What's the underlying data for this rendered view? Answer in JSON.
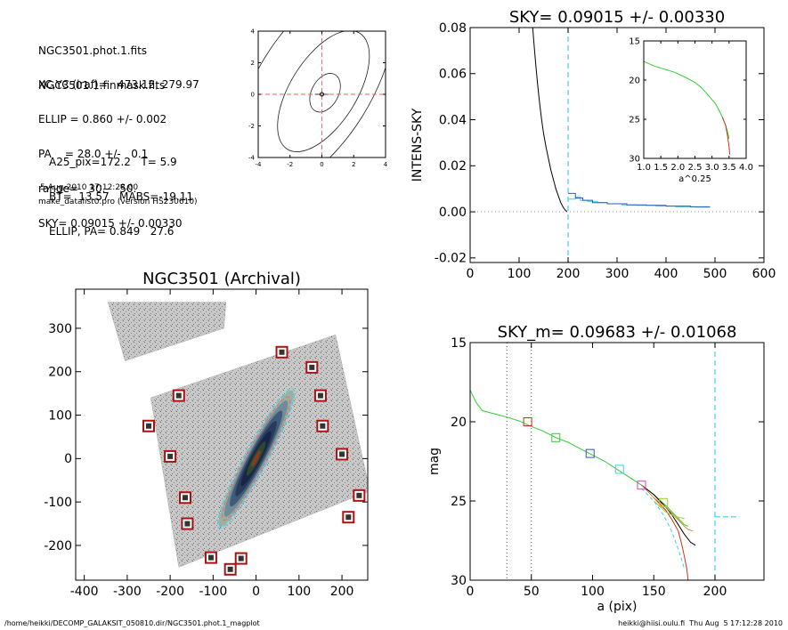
{
  "info": {
    "files": [
      "NGC3501.phot.1.fits",
      "NGC3501.1.finmask.fits"
    ],
    "params": [
      "XC,YC (iraf)=   473.12, 279.97",
      "ELLIP = 0.860 +/- 0.002",
      "PA    = 28.0 +/-   0.1",
      "range=   30.-   50.",
      "SKY= 0.09015 +/- 0.00330"
    ],
    "derived": [
      "A25_pix=172.2   T= 5.9",
      "BT=  13.57   MABS=-19.11",
      "ELLIP, PA= 0.849   27.6"
    ],
    "date": "5-Aug-2010 17:12:28.00",
    "program": "make_datalist0.pro (version HS230610)"
  },
  "footer": {
    "left": "/home/heikki/DECOMP_GALAKSIT_050810.dir/NGC3501.phot.1_magplot",
    "right": "heikki@hiisi.oulu.fi  Thu Aug  5 17:12:28 2010"
  },
  "colors": {
    "black": "#000000",
    "grid": "#999999",
    "cyan": "#44ccee",
    "navy": "#3355bb",
    "green": "#33cc33",
    "red": "#cc3311",
    "orange": "#dd8833",
    "magenta": "#cc44cc",
    "yellowgreen": "#99cc33",
    "dashred": "#ee6666",
    "boxred": "#aa1111"
  },
  "chart_data": [
    {
      "type": "line",
      "id": "contour",
      "title": "",
      "xlim": [
        -4,
        4
      ],
      "ylim": [
        -4,
        4
      ],
      "xticks": [
        -4,
        -2,
        0,
        2,
        4
      ],
      "yticks": [
        -4,
        -2,
        0,
        2,
        4
      ],
      "x_tick_labels": [
        "-4",
        "-2",
        "0",
        "2",
        "4"
      ],
      "y_tick_labels": [
        "-4",
        "-2",
        "0",
        "2",
        "4"
      ],
      "crosshair": [
        0,
        0
      ],
      "contours": [
        {
          "cx": 0.2,
          "cy": 0.1,
          "a": 1.3,
          "b": 0.85,
          "angle_deg": 62
        },
        {
          "cx": 0.1,
          "cy": 0.2,
          "a": 4.3,
          "b": 2.1,
          "angle_deg": 58
        },
        {
          "cx": -0.5,
          "cy": 0.5,
          "a": 7.5,
          "b": 3.6,
          "angle_deg": 58
        }
      ]
    },
    {
      "type": "line",
      "id": "sky",
      "title": "SKY= 0.09015 +/- 0.00330",
      "xlabel": "",
      "ylabel": "INTENS-SKY",
      "xlim": [
        0,
        600
      ],
      "ylim": [
        -0.022,
        0.08
      ],
      "xticks": [
        0,
        100,
        200,
        300,
        400,
        500,
        600
      ],
      "yticks": [
        -0.02,
        0.0,
        0.02,
        0.04,
        0.06,
        0.08
      ],
      "x_tick_labels": [
        "0",
        "100",
        "200",
        "300",
        "400",
        "500",
        "600"
      ],
      "y_tick_labels": [
        "-0.02",
        "0.00",
        "0.02",
        "0.04",
        "0.06",
        "0.08"
      ],
      "zero_line": 0,
      "vline": 200,
      "series": [
        {
          "color": "black",
          "x": [
            127,
            130,
            134,
            138,
            142,
            146,
            150,
            155,
            160,
            165,
            170,
            175,
            180,
            185,
            190,
            195,
            198
          ],
          "y": [
            0.082,
            0.074,
            0.064,
            0.055,
            0.047,
            0.04,
            0.034,
            0.028,
            0.023,
            0.018,
            0.014,
            0.01,
            0.007,
            0.004,
            0.002,
            0.0005,
            0.0002
          ]
        },
        {
          "color": "cyan",
          "x": [
            200,
            215,
            215,
            225,
            225,
            240,
            240,
            260,
            260,
            280,
            280,
            310,
            310,
            340,
            340,
            380,
            380,
            420,
            420,
            460,
            460,
            490
          ],
          "y": [
            0.0055,
            0.0055,
            0.0065,
            0.0065,
            0.005,
            0.005,
            0.0045,
            0.0045,
            0.004,
            0.004,
            0.0035,
            0.0035,
            0.003,
            0.003,
            0.0028,
            0.0028,
            0.0025,
            0.0025,
            0.0022,
            0.0022,
            0.002,
            0.002
          ]
        },
        {
          "color": "navy",
          "x": [
            200,
            215,
            215,
            230,
            230,
            250,
            250,
            280,
            280,
            320,
            320,
            360,
            360,
            400,
            400,
            450,
            450,
            490
          ],
          "y": [
            0.008,
            0.008,
            0.006,
            0.006,
            0.005,
            0.005,
            0.004,
            0.004,
            0.0035,
            0.0035,
            0.003,
            0.003,
            0.0028,
            0.0028,
            0.0025,
            0.0025,
            0.0022,
            0.0022
          ]
        }
      ]
    },
    {
      "type": "line",
      "id": "sky-inset",
      "title": "",
      "xlabel": "a^0.25",
      "xlim": [
        1.0,
        4.0
      ],
      "ylim": [
        30,
        15
      ],
      "xticks": [
        1.0,
        1.5,
        2.0,
        2.5,
        3.0,
        3.5,
        4.0
      ],
      "yticks": [
        15,
        20,
        25,
        30
      ],
      "x_tick_labels": [
        "1.0",
        "1.5",
        "2.0",
        "2.5",
        "3.0",
        "3.5",
        "4.0"
      ],
      "y_tick_labels": [
        "15",
        "20",
        "25",
        "30"
      ],
      "series": [
        {
          "color": "green",
          "x": [
            1.0,
            1.3,
            1.6,
            1.9,
            2.2,
            2.5,
            2.7,
            2.9,
            3.1,
            3.2,
            3.3,
            3.4,
            3.45,
            3.5
          ],
          "y": [
            17.6,
            18.2,
            18.6,
            19.0,
            19.6,
            20.3,
            21.0,
            22.0,
            23.0,
            23.8,
            24.7,
            25.8,
            26.5,
            27.5
          ]
        },
        {
          "color": "red",
          "x": [
            3.3,
            3.4,
            3.45,
            3.5,
            3.52
          ],
          "y": [
            24.7,
            25.8,
            27.0,
            28.5,
            29.5
          ]
        }
      ]
    },
    {
      "type": "scatter",
      "id": "image",
      "title": "NGC3501 (Archival)",
      "xlim": [
        -420,
        260
      ],
      "ylim": [
        -280,
        390
      ],
      "xticks": [
        -400,
        -300,
        -200,
        -100,
        0,
        100,
        200
      ],
      "yticks": [
        -200,
        -100,
        0,
        100,
        200,
        300
      ],
      "x_tick_labels": [
        "-400",
        "-300",
        "-200",
        "-100",
        "0",
        "100",
        "200"
      ],
      "y_tick_labels": [
        "-200",
        "-100",
        "0",
        "100",
        "200",
        "300"
      ],
      "galaxy": {
        "cx": 0,
        "cy": 0,
        "a": 180,
        "b": 25,
        "pa_deg": 28
      },
      "field_polygons": [
        [
          [
            -345,
            360
          ],
          [
            -70,
            360
          ],
          [
            -75,
            300
          ],
          [
            -305,
            225
          ]
        ],
        [
          [
            -245,
            140
          ],
          [
            185,
            285
          ],
          [
            265,
            -75
          ],
          [
            -180,
            -250
          ]
        ]
      ],
      "star_boxes": [
        {
          "x": 60,
          "y": 245
        },
        {
          "x": 130,
          "y": 210
        },
        {
          "x": -180,
          "y": 145
        },
        {
          "x": 150,
          "y": 145
        },
        {
          "x": -250,
          "y": 75
        },
        {
          "x": 155,
          "y": 75
        },
        {
          "x": -200,
          "y": 5
        },
        {
          "x": 200,
          "y": 10
        },
        {
          "x": -165,
          "y": -90
        },
        {
          "x": 240,
          "y": -85
        },
        {
          "x": -160,
          "y": -150
        },
        {
          "x": 215,
          "y": -135
        },
        {
          "x": -105,
          "y": -228
        },
        {
          "x": -35,
          "y": -230
        },
        {
          "x": -60,
          "y": -255
        }
      ]
    },
    {
      "type": "line",
      "id": "mag",
      "title": "SKY_m=  0.09683 +/- 0.01068",
      "xlabel": "a (pix)",
      "ylabel": "mag",
      "xlim": [
        0,
        240
      ],
      "ylim": [
        30,
        15
      ],
      "xticks": [
        0,
        50,
        100,
        150,
        200
      ],
      "yticks": [
        15,
        20,
        25,
        30
      ],
      "x_tick_labels": [
        "0",
        "50",
        "100",
        "150",
        "200"
      ],
      "y_tick_labels": [
        "15",
        "20",
        "25",
        "30"
      ],
      "range_lines": [
        30,
        50
      ],
      "vline": 200,
      "sky_segment": {
        "x": [
          200,
          220
        ],
        "y": 26.0
      },
      "series": [
        {
          "color": "green",
          "x": [
            0,
            5,
            10,
            20,
            30,
            40,
            50,
            60,
            70,
            80,
            90,
            100,
            110,
            120,
            130,
            140,
            150,
            160,
            165,
            170,
            175,
            178
          ],
          "y": [
            18.0,
            18.8,
            19.3,
            19.5,
            19.7,
            19.95,
            20.3,
            20.6,
            21.0,
            21.3,
            21.7,
            22.1,
            22.5,
            23.0,
            23.5,
            24.0,
            24.6,
            25.3,
            25.7,
            26.1,
            26.5,
            26.6
          ]
        },
        {
          "color": "black",
          "x": [
            140,
            150,
            160,
            165,
            170,
            175,
            180,
            184
          ],
          "y": [
            24.0,
            24.6,
            25.4,
            25.9,
            26.5,
            27.1,
            27.6,
            27.8
          ]
        },
        {
          "color": "red",
          "x": [
            150,
            160,
            165,
            170,
            173,
            175,
            177,
            178
          ],
          "y": [
            24.8,
            25.6,
            26.2,
            26.9,
            27.8,
            28.5,
            29.3,
            30.0
          ]
        },
        {
          "color": "orange",
          "x": [
            140,
            150,
            160,
            165,
            170,
            175,
            178,
            182
          ],
          "y": [
            24.0,
            24.8,
            25.4,
            25.8,
            26.2,
            26.6,
            26.8,
            26.9
          ]
        },
        {
          "color": "cyan",
          "x": [
            140,
            150,
            158,
            164,
            168,
            172,
            175
          ],
          "y": [
            24.2,
            25.0,
            25.9,
            26.8,
            27.6,
            28.5,
            29.3
          ]
        },
        {
          "color": "yellowgreen",
          "x": [
            150,
            160,
            168,
            175
          ],
          "y": [
            25.0,
            25.7,
            26.0,
            26.1
          ]
        }
      ],
      "markers": [
        {
          "x": 47,
          "y": 20.0,
          "color": "red"
        },
        {
          "x": 70,
          "y": 21.0,
          "color": "green"
        },
        {
          "x": 98,
          "y": 22.0,
          "color": "navy"
        },
        {
          "x": 122,
          "y": 23.0,
          "color": "cyan"
        },
        {
          "x": 140,
          "y": 24.0,
          "color": "magenta"
        },
        {
          "x": 158,
          "y": 25.1,
          "color": "yellowgreen"
        }
      ]
    }
  ]
}
